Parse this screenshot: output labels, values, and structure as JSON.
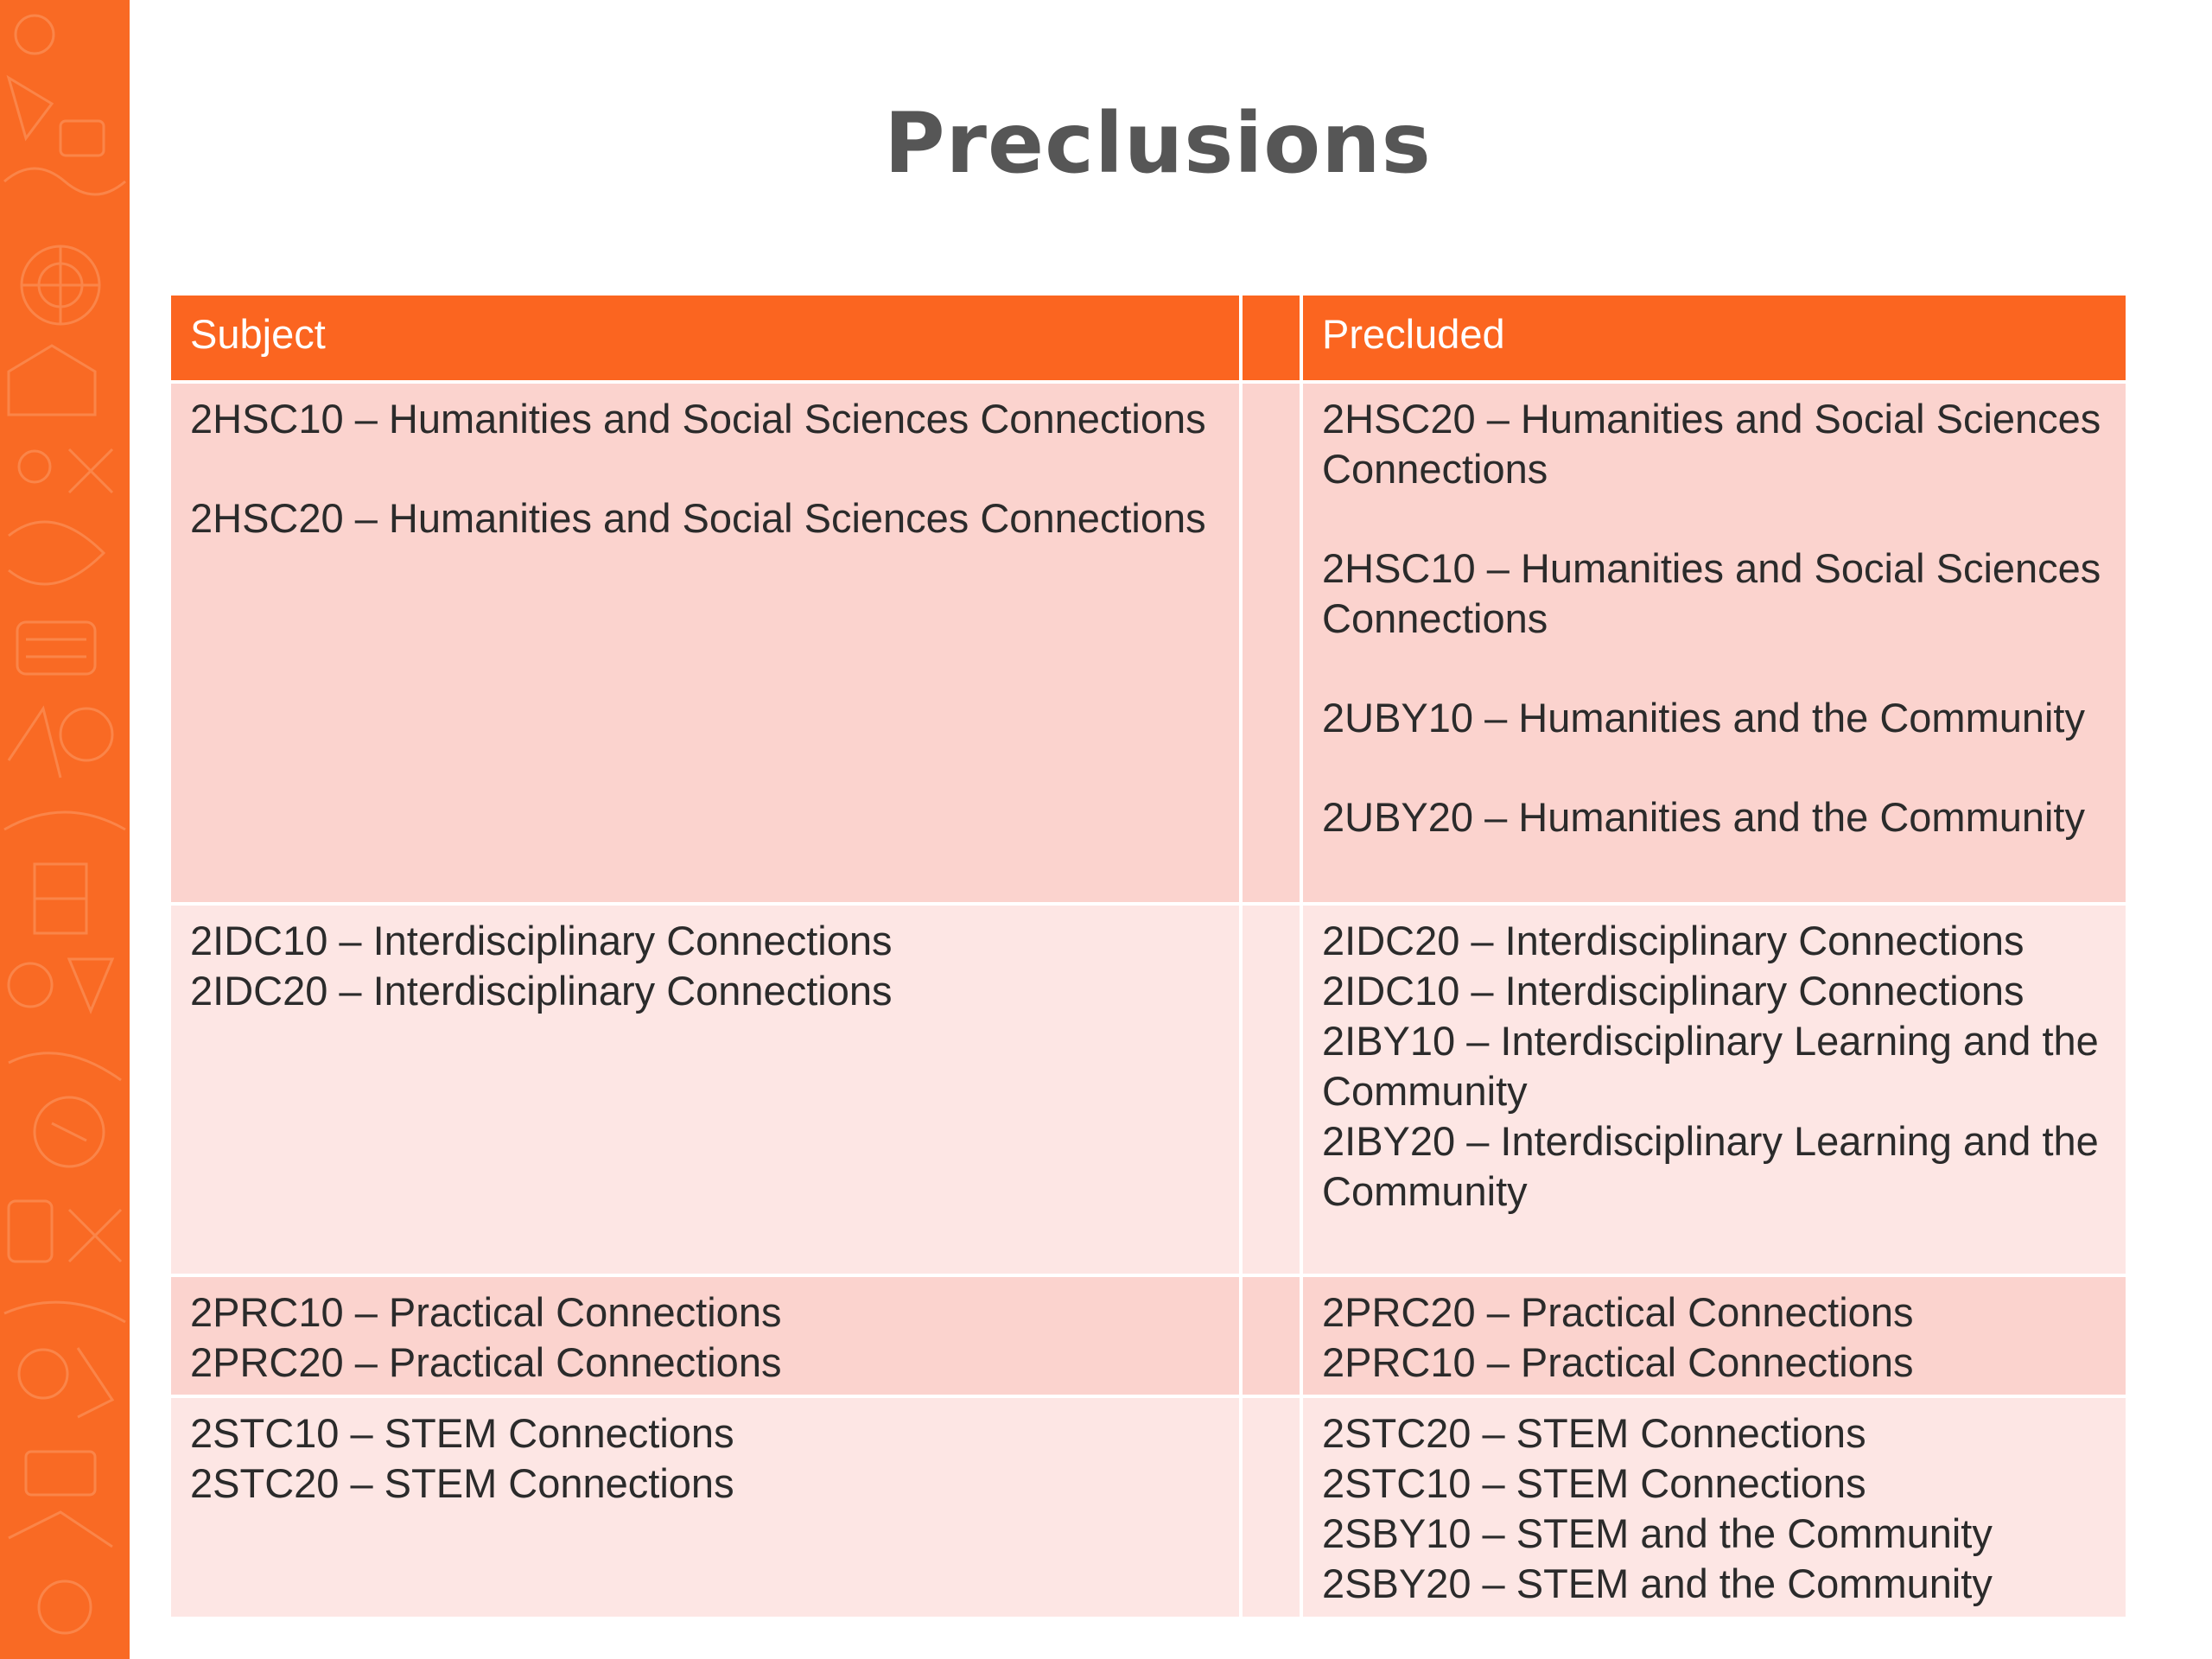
{
  "title": "Preclusions",
  "colors": {
    "accent": "#f96a24",
    "header_bg": "#fb6520",
    "row_dark": "#fbd3ce",
    "row_light": "#fde6e4",
    "title_text": "#565656"
  },
  "table": {
    "headers": {
      "subject": "Subject",
      "spacer": "",
      "precluded": "Precluded"
    },
    "rows": [
      {
        "subject": [
          "2HSC10 – Humanities and Social Sciences Connections",
          "2HSC20 – Humanities and Social Sciences Connections"
        ],
        "precluded": [
          "2HSC20 – Humanities and Social Sciences Connections",
          "2HSC10 – Humanities and Social Sciences Connections",
          "2UBY10 – Humanities and the Community",
          "2UBY20 – Humanities and the Community"
        ]
      },
      {
        "subject": [
          "2IDC10 – Interdisciplinary Connections",
          "2IDC20 – Interdisciplinary Connections"
        ],
        "precluded": [
          "2IDC20 – Interdisciplinary Connections",
          "2IDC10 – Interdisciplinary Connections",
          "2IBY10 – Interdisciplinary Learning and the Community",
          "2IBY20 – Interdisciplinary Learning and the Community"
        ]
      },
      {
        "subject": [
          "2PRC10 – Practical Connections",
          "2PRC20 – Practical Connections"
        ],
        "precluded": [
          "2PRC20 – Practical Connections",
          "2PRC10 – Practical Connections"
        ]
      },
      {
        "subject": [
          "2STC10 – STEM Connections",
          "2STC20 – STEM Connections"
        ],
        "precluded": [
          "2STC20 – STEM Connections",
          "2STC10 – STEM Connections",
          "2SBY10 – STEM and the Community",
          "2SBY20 – STEM and the Community"
        ]
      }
    ]
  }
}
